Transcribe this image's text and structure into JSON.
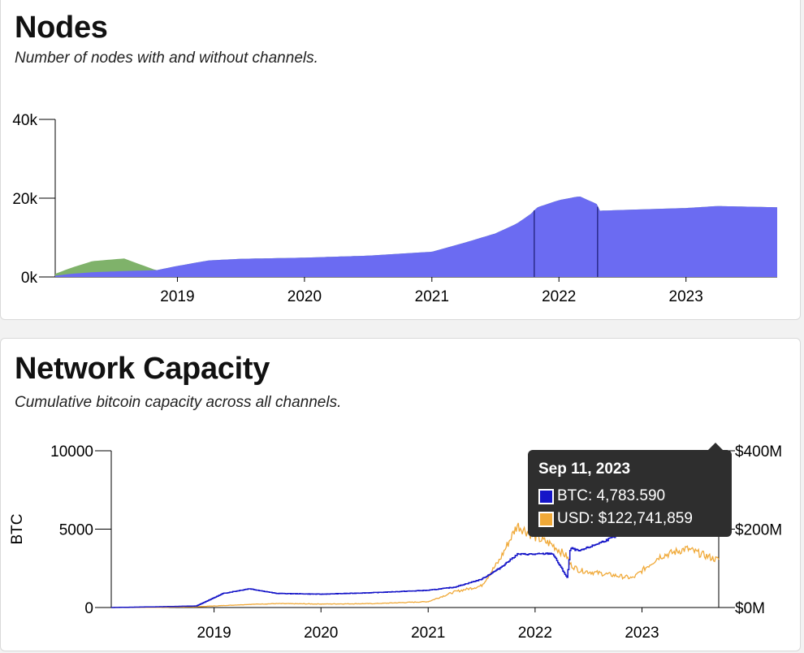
{
  "nodes_card": {
    "title": "Nodes",
    "subtitle": "Number of nodes with and without channels."
  },
  "capacity_card": {
    "title": "Network Capacity",
    "subtitle": "Cumulative bitcoin capacity across all channels."
  },
  "tooltip": {
    "date": "Sep 11, 2023",
    "btc_label": "BTC: 4,783.590",
    "usd_label": "USD: $122,741,859"
  },
  "colors": {
    "nodes_with_channels": "#6b6bf2",
    "nodes_without_channels": "#7fb26a",
    "btc_line": "#1515c8",
    "usd_line": "#f0a938"
  },
  "chart_data": [
    {
      "type": "area",
      "xlabel": "",
      "ylabel": "",
      "x_ticks": [
        "2019",
        "2020",
        "2021",
        "2022",
        "2023"
      ],
      "y_ticks": [
        "0k",
        "20k",
        "40k"
      ],
      "ylim": [
        0,
        40000
      ],
      "xlim": [
        "2018-01-15",
        "2023-09-20"
      ],
      "x": [
        "2018-01-15",
        "2018-03-01",
        "2018-05-01",
        "2018-08-01",
        "2018-11-01",
        "2019-01-01",
        "2019-04-01",
        "2019-07-01",
        "2020-01-01",
        "2020-07-01",
        "2021-01-01",
        "2021-04-01",
        "2021-07-01",
        "2021-09-01",
        "2021-10-20",
        "2021-10-25",
        "2022-01-01",
        "2022-03-01",
        "2022-04-20",
        "2022-04-25",
        "2022-07-01",
        "2023-01-01",
        "2023-04-01",
        "2023-09-15"
      ],
      "series": [
        {
          "name": "",
          "values": [
            300,
            800,
            1200,
            1500,
            1700,
            2800,
            4200,
            4600,
            4900,
            5400,
            6400,
            8600,
            11000,
            13500,
            16500,
            17500,
            19500,
            20500,
            18500,
            16800,
            17000,
            17500,
            18000,
            17700
          ]
        },
        {
          "name": "",
          "values": [
            500,
            1500,
            2800,
            3200,
            0,
            0,
            0,
            0,
            0,
            0,
            0,
            0,
            0,
            0,
            0,
            0,
            0,
            0,
            0,
            0,
            0,
            0,
            0,
            0
          ]
        }
      ]
    },
    {
      "type": "line",
      "xlabel": "",
      "ylabel": "BTC",
      "x_ticks": [
        "2019",
        "2020",
        "2021",
        "2022",
        "2023"
      ],
      "y_ticks": [
        "0",
        "5000",
        "10000"
      ],
      "y2_ticks": [
        "$0M",
        "$200M",
        "$400M"
      ],
      "ylim": [
        0,
        10000
      ],
      "y2lim": [
        0,
        400000000
      ],
      "xlim": [
        "2018-01-15",
        "2023-09-20"
      ],
      "x": [
        "2018-01-15",
        "2018-07-01",
        "2018-11-01",
        "2019-02-01",
        "2019-05-01",
        "2019-08-01",
        "2020-01-01",
        "2020-07-01",
        "2021-01-01",
        "2021-04-01",
        "2021-07-01",
        "2021-09-01",
        "2021-11-01",
        "2022-01-01",
        "2022-03-01",
        "2022-04-20",
        "2022-05-01",
        "2022-06-01",
        "2022-09-01",
        "2022-12-01",
        "2023-03-01",
        "2023-06-01",
        "2023-09-11"
      ],
      "series": [
        {
          "name": "BTC",
          "values": [
            0,
            50,
            100,
            900,
            1200,
            900,
            850,
            950,
            1100,
            1300,
            1800,
            2500,
            3400,
            3400,
            3450,
            1900,
            3800,
            3600,
            4300,
            5000,
            5100,
            5200,
            4783.59
          ]
        },
        {
          "name": "USD",
          "values": [
            0,
            500000,
            2000000,
            5000000,
            8000000,
            10000000,
            9000000,
            10000000,
            15000000,
            40000000,
            55000000,
            120000000,
            210000000,
            180000000,
            160000000,
            130000000,
            110000000,
            95000000,
            85000000,
            75000000,
            130000000,
            150000000,
            122741859
          ]
        }
      ]
    }
  ]
}
